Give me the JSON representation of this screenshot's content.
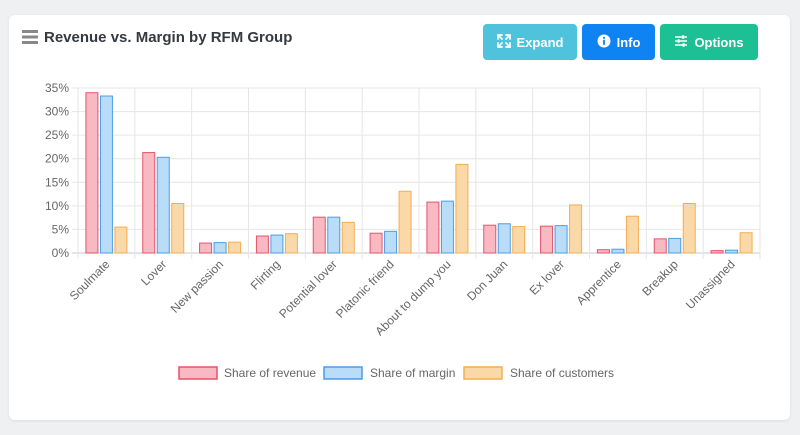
{
  "title": "Revenue vs. Margin by RFM Group",
  "buttons": {
    "expand": "Expand",
    "info": "Info",
    "options": "Options"
  },
  "colors": {
    "expand": "#4fc3dc",
    "info": "#1083f3",
    "options": "#1dbf95",
    "revenue_fill": "#f8b9c2",
    "revenue_stroke": "#e3546a",
    "margin_fill": "#b9dcf9",
    "margin_stroke": "#4a9de6",
    "customers_fill": "#fbd8a8",
    "customers_stroke": "#f4ad53",
    "grid": "#e6e6e6"
  },
  "chart_data": {
    "type": "bar",
    "categories": [
      "Soulmate",
      "Lover",
      "New passion",
      "Flirting",
      "Potential lover",
      "Platonic friend",
      "About to dump you",
      "Don Juan",
      "Ex lover",
      "Apprentice",
      "Breakup",
      "Unassigned"
    ],
    "series": [
      {
        "name": "Share of revenue",
        "values": [
          34,
          21.3,
          2.1,
          3.6,
          7.6,
          4.2,
          10.8,
          5.9,
          5.7,
          0.7,
          3.0,
          0.5
        ]
      },
      {
        "name": "Share of margin",
        "values": [
          33.3,
          20.3,
          2.2,
          3.8,
          7.6,
          4.6,
          11.0,
          6.2,
          5.8,
          0.8,
          3.1,
          0.6
        ]
      },
      {
        "name": "Share of customers",
        "values": [
          5.5,
          10.5,
          2.3,
          4.1,
          6.5,
          13.1,
          18.8,
          5.6,
          10.2,
          7.8,
          10.5,
          4.3
        ]
      }
    ],
    "y_ticks": [
      "0%",
      "5%",
      "10%",
      "15%",
      "20%",
      "25%",
      "30%",
      "35%"
    ],
    "ylim": [
      0,
      35
    ],
    "legend_position": "bottom",
    "grid": true
  }
}
